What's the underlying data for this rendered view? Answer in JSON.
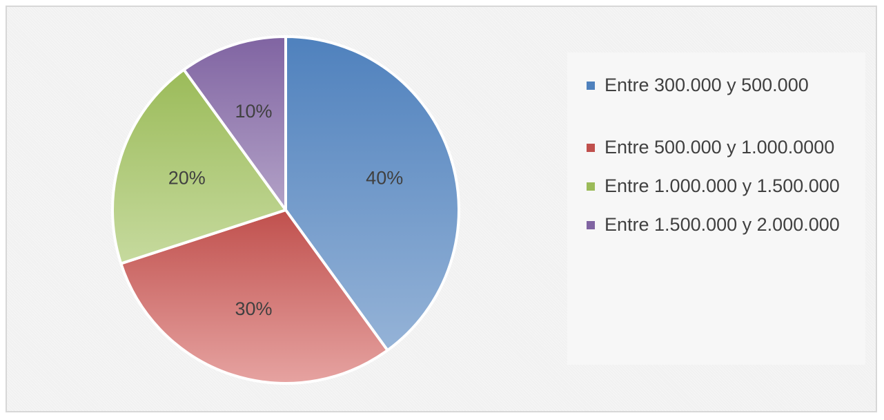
{
  "chart_data": {
    "type": "pie",
    "title": "",
    "categories": [
      "Entre 300.000 y 500.000",
      "Entre 500.000 y 1.000.0000",
      "Entre 1.000.000 y 1.500.000",
      "Entre 1.500.000 y 2.000.000"
    ],
    "values": [
      40,
      30,
      20,
      10
    ],
    "data_labels": [
      "40%",
      "30%",
      "20%",
      "10%"
    ],
    "colors": [
      "#4f81bd",
      "#c0504d",
      "#9bbb59",
      "#8064a2"
    ],
    "colors_light": [
      "#95b3d7",
      "#e6a3a1",
      "#c6da9e",
      "#b3a2c7"
    ],
    "legend_position": "right",
    "start_angle": "12 o'clock, clockwise"
  }
}
